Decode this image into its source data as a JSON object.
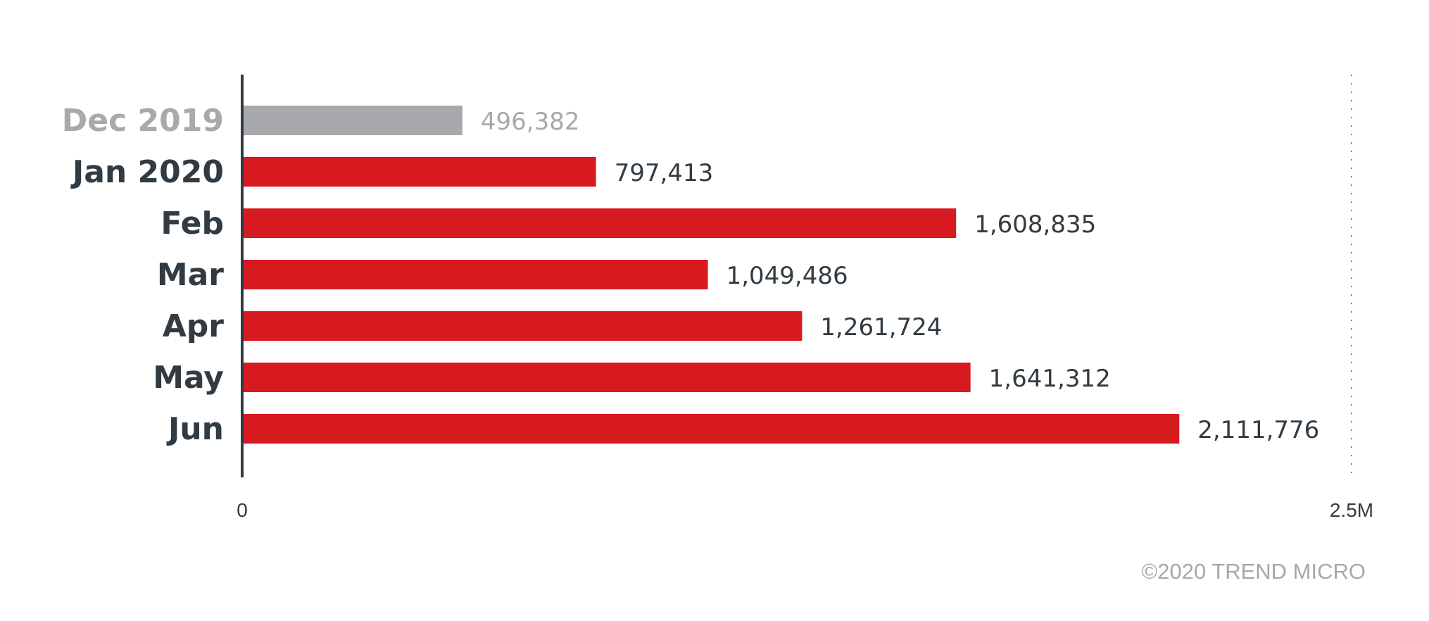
{
  "chart_data": {
    "type": "bar",
    "orientation": "horizontal",
    "categories": [
      "Dec 2019",
      "Jan 2020",
      "Feb",
      "Mar",
      "Apr",
      "May",
      "Jun"
    ],
    "values": [
      496382,
      797413,
      1608835,
      1049486,
      1261724,
      1641312,
      2111776
    ],
    "value_labels": [
      "496,382",
      "797,413",
      "1,608,835",
      "1,049,486",
      "1,261,724",
      "1,641,312",
      "2,111,776"
    ],
    "xlim": [
      0,
      2500000
    ],
    "x_ticks": [
      {
        "value": 0,
        "label": "0"
      },
      {
        "value": 2500000,
        "label": "2.5M"
      }
    ],
    "title": "",
    "xlabel": "",
    "ylabel": "",
    "grid": false,
    "colors": {
      "highlight": "#d71920",
      "baseline": "#a7a9ac",
      "category_text": "#313b41",
      "baseline_text": "#a7a9ac",
      "axis": "#313b41"
    },
    "bar_colors": [
      "baseline",
      "highlight",
      "highlight",
      "highlight",
      "highlight",
      "highlight",
      "highlight"
    ]
  },
  "footer": {
    "copyright": "©2020 TREND MICRO"
  }
}
